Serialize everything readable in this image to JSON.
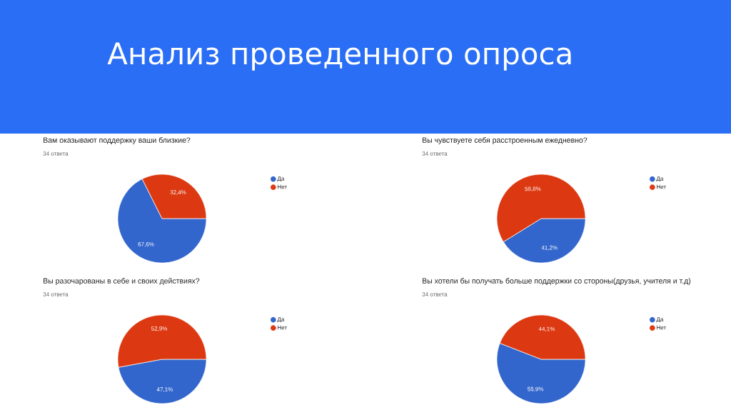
{
  "chart_data": [
    {
      "type": "other",
      "title": "Анализ проведенного опроса"
    },
    {
      "type": "pie",
      "title": "Вам оказывают поддержку ваши близкие?",
      "subtitle": "34 ответа",
      "categories": [
        "Да",
        "Нет"
      ],
      "values": [
        67.6,
        32.4
      ],
      "colors": [
        "#3366cc",
        "#dc3912"
      ],
      "value_labels": [
        "67,6%",
        "32,4%"
      ],
      "legend": "right"
    },
    {
      "type": "pie",
      "title": "Вы чувствуете себя расстроенным ежедневно?",
      "subtitle": "34 ответа",
      "categories": [
        "Да",
        "Нет"
      ],
      "values": [
        41.2,
        58.8
      ],
      "colors": [
        "#3366cc",
        "#dc3912"
      ],
      "value_labels": [
        "41,2%",
        "58,8%"
      ],
      "legend": "right"
    },
    {
      "type": "pie",
      "title": "Вы разочарованы в себе и своих действиях?",
      "subtitle": "34 ответа",
      "categories": [
        "Да",
        "Нет"
      ],
      "values": [
        47.1,
        52.9
      ],
      "colors": [
        "#3366cc",
        "#dc3912"
      ],
      "value_labels": [
        "47,1%",
        "52,9%"
      ],
      "legend": "right"
    },
    {
      "type": "pie",
      "title": "Вы хотели бы получать больше поддержки со стороны(друзья, учителя и т.д)",
      "subtitle": "34 ответа",
      "categories": [
        "Да",
        "Нет"
      ],
      "values": [
        55.9,
        44.1
      ],
      "colors": [
        "#3366cc",
        "#dc3912"
      ],
      "value_labels": [
        "55,9%",
        "44,1%"
      ],
      "legend": "right"
    }
  ]
}
